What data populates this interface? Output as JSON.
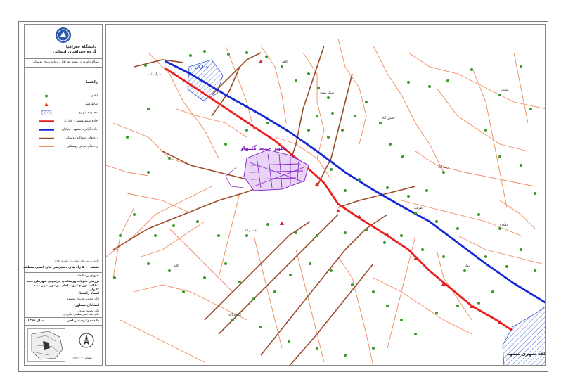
{
  "header": {
    "university": "دانشگاه جغرافیا",
    "department": "گروه جغرافیای انسانی",
    "thesis_title": "رساله دکتری در رشته جغرافیا و برنامه ریزی روستایی"
  },
  "legend": {
    "title": "راهنما",
    "items": [
      {
        "label": "آبادی",
        "symbol": "green-dot"
      },
      {
        "label": "نقاط مهم",
        "symbol": "red-triangle"
      },
      {
        "label": "محدوده شهری",
        "symbol": "blue-hatch"
      },
      {
        "label": "جاده سنتو مشهد - چناران",
        "symbol": "red-line"
      },
      {
        "label": "جاده آزادراه مشهد - چناران",
        "symbol": "blue-line"
      },
      {
        "label": "راه های آسفالته روستایی",
        "symbol": "brown-line"
      },
      {
        "label": "راه های فرعی روستایی",
        "symbol": "orange-line"
      }
    ]
  },
  "source_note": "مأخذ: بررسی های میدانی در شهریور ۱۳۸۵",
  "map_number": "نقشه ۱۰-۵ راه های دسترسی های اصلی منطقه",
  "thesis": {
    "label": "عنوان رساله:",
    "title": "بررسی تحولات روستاهای پیرامونی شهرهای جدید مطالعه موردی: روستاهای پیرامون شهر جدید گلبهار"
  },
  "advisor": {
    "label": "استاد راهنما:",
    "name": "دکتر مجتبی قدیری معصوم"
  },
  "consultants": {
    "label": "استادان مشاور:",
    "names": [
      "دکتر مسعود مهدوی",
      "دکتر سید حسن مطیعی لنگرودی"
    ]
  },
  "student": {
    "label": "دانشجو: وحید ریاحی",
    "year": "سال ۱۳۸۵"
  },
  "scale_text": "مقیاس ۱:۲۵۰۰۰۰",
  "map": {
    "labels": {
      "golbahar": "شهر جدید گلبهار",
      "mashhad": "منطقه شهری مشهد",
      "chenaran": "چناران"
    },
    "colors": {
      "frame": "#888888",
      "settlement": "#3a9a2a",
      "important": "#e02020",
      "urban_hatch": "#3a5bd0",
      "old_road": "#ee1c1c",
      "freeway": "#1428d8",
      "asphalt_rural": "#9a4a2a",
      "minor_rural": "#f08a60",
      "golbahar": "#8a2ad0"
    },
    "villages": [
      "سرآسیاب",
      "کاهو",
      "سنگ بست",
      "حسین آباد",
      "رضا آباد",
      "طرقبه",
      "دهکده",
      "قاسم آباد",
      "کلاته",
      "اسلام آباد",
      "بهار",
      "شاندیز"
    ]
  }
}
